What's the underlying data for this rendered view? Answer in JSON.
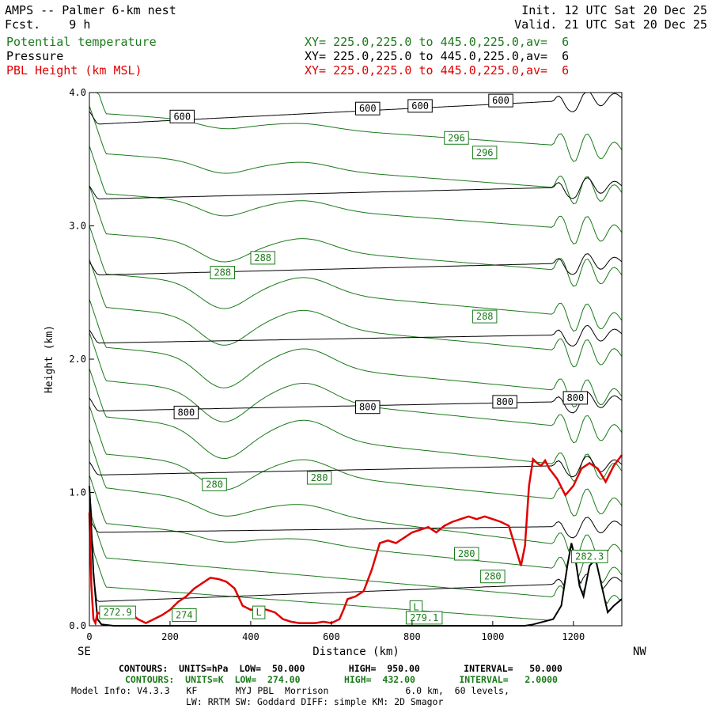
{
  "header": {
    "title": "AMPS -- Palmer 6-km nest",
    "fcst": "Fcst.    9 h",
    "init": "Init. 12 UTC Sat 20 Dec 25",
    "valid": "Valid. 21 UTC Sat 20 Dec 25",
    "fields": [
      {
        "name": "Potential temperature",
        "xy": "XY= 225.0,225.0 to 445.0,225.0,av=  6",
        "color": "#1a7a1a"
      },
      {
        "name": "Pressure",
        "xy": "XY= 225.0,225.0 to 445.0,225.0,av=  6",
        "color": "#000000"
      },
      {
        "name": "PBL Height (km MSL)",
        "xy": "XY= 225.0,225.0 to 445.0,225.0,av=  6",
        "color": "#e00000"
      }
    ]
  },
  "footer": {
    "line1": "CONTOURS:  UNITS=hPa  LOW=  50.000        HIGH=  950.00        INTERVAL=   50.000",
    "line2": "CONTOURS:  UNITS=K  LOW=  274.00        HIGH=  432.00        INTERVAL=   2.0000",
    "line3": "Model Info: V4.3.3   KF       MYJ PBL  Morrison              6.0 km,  60 levels,",
    "line4": "LW: RRTM SW: Goddard DIFF: simple KM: 2D Smagor"
  },
  "chart_data": {
    "type": "line",
    "xlabel": "Distance (km)",
    "ylabel": "Height (km)",
    "xlim": [
      0,
      1320
    ],
    "ylim": [
      0,
      4.0
    ],
    "x_ticks": [
      0,
      200,
      400,
      600,
      800,
      1000,
      1200
    ],
    "y_ticks": [
      0.0,
      1.0,
      2.0,
      3.0,
      4.0
    ],
    "x_tick_labels": [
      "0",
      "200",
      "400",
      "600",
      "800",
      "1000",
      "1200"
    ],
    "y_tick_labels": [
      "0.0",
      "1.0",
      "2.0",
      "3.0",
      "4.0"
    ],
    "x_end_left": "SE",
    "x_end_right": "NW",
    "colors": {
      "theta": "#1a7a1a",
      "pressure": "#000000",
      "pbl": "#e00000"
    },
    "pressure_isobars": [
      {
        "y0": 0.18,
        "y1": 0.33
      },
      {
        "y0": 0.7,
        "y1": 0.75
      },
      {
        "y0": 1.13,
        "y1": 1.21
      },
      {
        "y0": 1.61,
        "y1": 1.69
      },
      {
        "y0": 2.12,
        "y1": 2.19
      },
      {
        "y0": 2.63,
        "y1": 2.73
      },
      {
        "y0": 3.2,
        "y1": 3.3
      },
      {
        "y0": 3.76,
        "y1": 3.96
      }
    ],
    "theta_isentropes": [
      {
        "base": 0.3,
        "dip": 0.0,
        "fall": 0.3
      },
      {
        "base": 0.52,
        "dip": 0.0,
        "fall": 0.35
      },
      {
        "base": 0.78,
        "dip": 0.05,
        "fall": 0.4
      },
      {
        "base": 1.05,
        "dip": 0.1,
        "fall": 0.5
      },
      {
        "base": 1.3,
        "dip": 0.18,
        "fall": 0.4
      },
      {
        "base": 1.58,
        "dip": 0.22,
        "fall": 0.42
      },
      {
        "base": 1.85,
        "dip": 0.22,
        "fall": 0.4
      },
      {
        "base": 2.1,
        "dip": 0.22,
        "fall": 0.38
      },
      {
        "base": 2.4,
        "dip": 0.2,
        "fall": 0.38
      },
      {
        "base": 2.65,
        "dip": 0.18,
        "fall": 0.36
      },
      {
        "base": 2.95,
        "dip": 0.14,
        "fall": 0.32
      },
      {
        "base": 3.25,
        "dip": 0.1,
        "fall": 0.3
      },
      {
        "base": 3.55,
        "dip": 0.08,
        "fall": 0.3
      },
      {
        "base": 3.85,
        "dip": 0.05,
        "fall": 0.28
      }
    ],
    "terrain": {
      "x": [
        0,
        10,
        20,
        30,
        60,
        100,
        300,
        600,
        900,
        1080,
        1100,
        1150,
        1170,
        1185,
        1195,
        1205,
        1215,
        1225,
        1240,
        1255,
        1270,
        1285,
        1300,
        1320
      ],
      "y": [
        1.05,
        0.4,
        0.05,
        0.01,
        0.0,
        0.0,
        0.0,
        0.0,
        0.0,
        0.0,
        0.01,
        0.05,
        0.15,
        0.45,
        0.62,
        0.5,
        0.3,
        0.22,
        0.45,
        0.5,
        0.3,
        0.1,
        0.15,
        0.2
      ]
    },
    "pbl_height": {
      "x": [
        0,
        5,
        10,
        15,
        20,
        30,
        40,
        60,
        80,
        100,
        120,
        140,
        160,
        180,
        200,
        220,
        240,
        260,
        280,
        300,
        320,
        340,
        360,
        380,
        400,
        420,
        440,
        460,
        480,
        500,
        520,
        540,
        560,
        580,
        600,
        620,
        630,
        640,
        660,
        680,
        700,
        720,
        740,
        760,
        780,
        800,
        820,
        840,
        860,
        880,
        900,
        920,
        940,
        960,
        980,
        1000,
        1020,
        1040,
        1060,
        1070,
        1080,
        1090,
        1100,
        1110,
        1120,
        1130,
        1140,
        1160,
        1180,
        1200,
        1220,
        1240,
        1260,
        1280,
        1300,
        1320
      ],
      "y": [
        0.85,
        0.3,
        0.05,
        0.02,
        0.1,
        0.08,
        0.12,
        0.1,
        0.12,
        0.1,
        0.05,
        0.02,
        0.05,
        0.08,
        0.12,
        0.18,
        0.22,
        0.28,
        0.32,
        0.36,
        0.35,
        0.33,
        0.28,
        0.15,
        0.12,
        0.13,
        0.12,
        0.1,
        0.05,
        0.03,
        0.02,
        0.02,
        0.02,
        0.03,
        0.02,
        0.05,
        0.12,
        0.2,
        0.22,
        0.26,
        0.42,
        0.62,
        0.64,
        0.62,
        0.66,
        0.7,
        0.72,
        0.74,
        0.7,
        0.75,
        0.78,
        0.8,
        0.82,
        0.8,
        0.82,
        0.8,
        0.78,
        0.75,
        0.55,
        0.45,
        0.6,
        1.05,
        1.25,
        1.22,
        1.2,
        1.24,
        1.18,
        1.1,
        0.98,
        1.05,
        1.18,
        1.22,
        1.18,
        1.08,
        1.2,
        1.28
      ]
    },
    "contour_labels": [
      {
        "text": "600",
        "x": 230,
        "y": 3.82,
        "color": "#000000"
      },
      {
        "text": "600",
        "x": 690,
        "y": 3.88,
        "color": "#000000"
      },
      {
        "text": "600",
        "x": 820,
        "y": 3.9,
        "color": "#000000"
      },
      {
        "text": "600",
        "x": 1020,
        "y": 3.94,
        "color": "#000000"
      },
      {
        "text": "296",
        "x": 910,
        "y": 3.66,
        "color": "#1a7a1a"
      },
      {
        "text": "296",
        "x": 980,
        "y": 3.55,
        "color": "#1a7a1a"
      },
      {
        "text": "288",
        "x": 430,
        "y": 2.76,
        "color": "#1a7a1a"
      },
      {
        "text": "288",
        "x": 330,
        "y": 2.65,
        "color": "#1a7a1a"
      },
      {
        "text": "288",
        "x": 980,
        "y": 2.32,
        "color": "#1a7a1a"
      },
      {
        "text": "800",
        "x": 240,
        "y": 1.6,
        "color": "#000000"
      },
      {
        "text": "800",
        "x": 690,
        "y": 1.64,
        "color": "#000000"
      },
      {
        "text": "800",
        "x": 1030,
        "y": 1.68,
        "color": "#000000"
      },
      {
        "text": "800",
        "x": 1205,
        "y": 1.71,
        "color": "#000000"
      },
      {
        "text": "280",
        "x": 310,
        "y": 1.06,
        "color": "#1a7a1a"
      },
      {
        "text": "280",
        "x": 570,
        "y": 1.11,
        "color": "#1a7a1a"
      },
      {
        "text": "280",
        "x": 935,
        "y": 0.54,
        "color": "#1a7a1a"
      },
      {
        "text": "280",
        "x": 1000,
        "y": 0.37,
        "color": "#1a7a1a"
      },
      {
        "text": "272.9",
        "x": 70,
        "y": 0.1,
        "color": "#1a7a1a"
      },
      {
        "text": "274",
        "x": 235,
        "y": 0.08,
        "color": "#1a7a1a"
      },
      {
        "text": "L",
        "x": 420,
        "y": 0.1,
        "color": "#1a7a1a"
      },
      {
        "text": "L",
        "x": 810,
        "y": 0.14,
        "color": "#1a7a1a"
      },
      {
        "text": "279.1",
        "x": 830,
        "y": 0.06,
        "color": "#1a7a1a"
      },
      {
        "text": "282.3",
        "x": 1240,
        "y": 0.52,
        "color": "#1a7a1a"
      }
    ]
  }
}
